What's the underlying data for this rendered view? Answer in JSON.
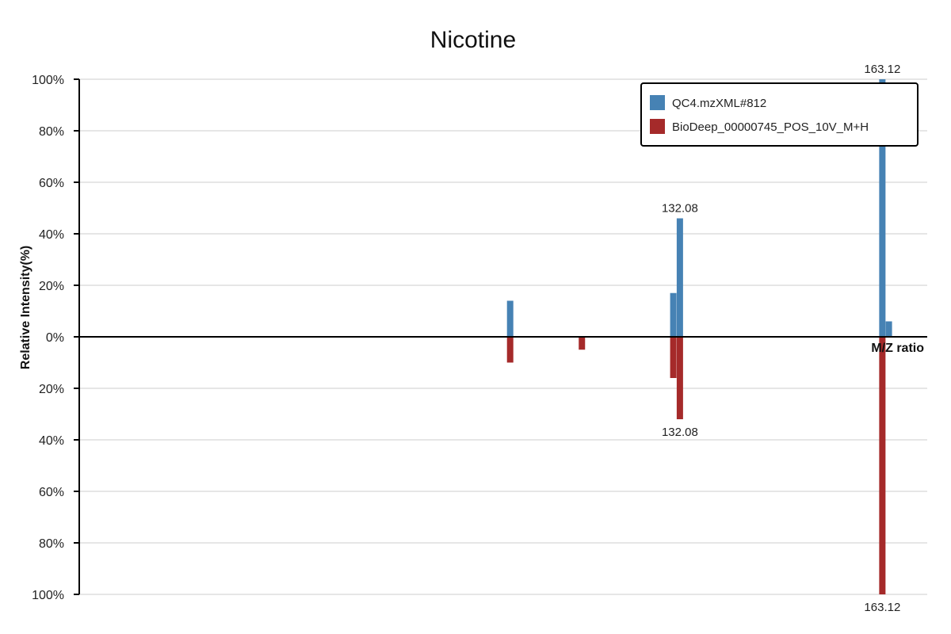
{
  "chart_data": {
    "type": "bar",
    "title": "Nicotine",
    "xlabel": "M/Z ratio",
    "ylabel": "Relative Intensity(%)",
    "ylim": [
      -100,
      100
    ],
    "xlim": [
      40,
      170
    ],
    "yticks": [
      "100%",
      "80%",
      "60%",
      "40%",
      "20%",
      "0%",
      "20%",
      "40%",
      "60%",
      "80%",
      "100%"
    ],
    "grid": true,
    "legend_position": "top-right",
    "series": [
      {
        "name": "QC4.mzXML#812",
        "color": "#4682b4",
        "direction": "up",
        "peaks": [
          {
            "mz": 106.06,
            "intensity": 14
          },
          {
            "mz": 131.07,
            "intensity": 17
          },
          {
            "mz": 132.08,
            "intensity": 46
          },
          {
            "mz": 163.12,
            "intensity": 100
          },
          {
            "mz": 164.12,
            "intensity": 6
          }
        ]
      },
      {
        "name": "BioDeep_00000745_POS_10V_M+H",
        "color": "#a52a2a",
        "direction": "down",
        "peaks": [
          {
            "mz": 106.06,
            "intensity": 10
          },
          {
            "mz": 117.06,
            "intensity": 5
          },
          {
            "mz": 131.07,
            "intensity": 16
          },
          {
            "mz": 132.08,
            "intensity": 32
          },
          {
            "mz": 163.12,
            "intensity": 100
          }
        ]
      }
    ],
    "annotations": [
      {
        "text": "163.12",
        "series": 0,
        "mz": 163.12
      },
      {
        "text": "132.08",
        "series": 0,
        "mz": 132.08
      },
      {
        "text": "132.08",
        "series": 1,
        "mz": 132.08
      },
      {
        "text": "163.12",
        "series": 1,
        "mz": 163.12
      }
    ]
  }
}
